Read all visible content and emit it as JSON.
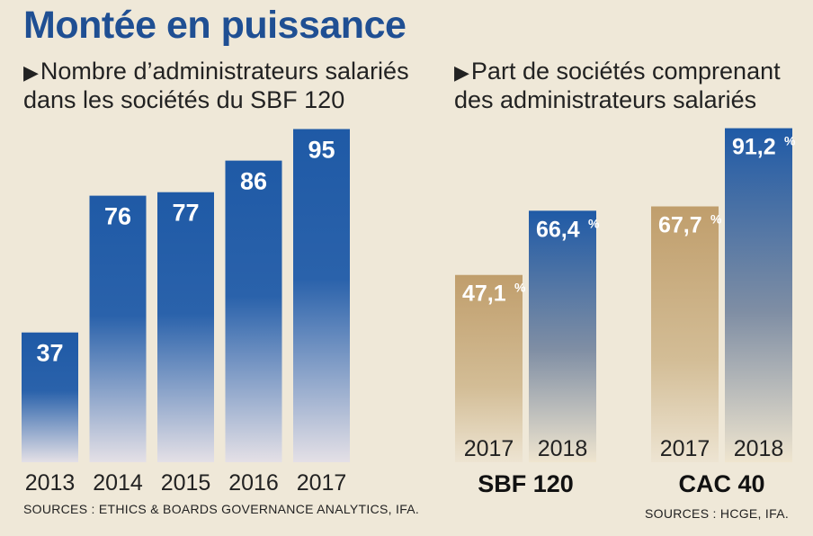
{
  "header": {
    "title": "Montée en puissance",
    "left_subtitle_line1": "Nombre d’administrateurs salariés",
    "left_subtitle_line2": "dans les sociétés du SBF 120",
    "right_subtitle_line1": "Part de sociétés comprenant",
    "right_subtitle_line2": "des administrateurs salariés",
    "arrow_icon": "triangle-right-icon"
  },
  "sources": {
    "left": "SOURCES : ETHICS & BOARDS GOVERNANCE ANALYTICS, IFA.",
    "right": "SOURCES : HCGE, IFA."
  },
  "colors": {
    "background": "#efe8d8",
    "blue": "#1f5aa6",
    "gold": "#c4a574",
    "title": "#1f4f93"
  },
  "chart_data": [
    {
      "type": "bar",
      "categories": [
        "2013",
        "2014",
        "2015",
        "2016",
        "2017"
      ],
      "values": [
        37,
        76,
        77,
        86,
        95
      ],
      "labels": [
        "37",
        "76",
        "77",
        "86",
        "95"
      ],
      "title": "Nombre d’administrateurs salariés dans les sociétés du SBF 120",
      "ylim": [
        0,
        100
      ]
    },
    {
      "type": "bar",
      "groups": [
        {
          "name": "SBF 120",
          "categories": [
            "2017",
            "2018"
          ],
          "values": [
            47.1,
            66.4
          ],
          "labels": [
            "47,1",
            "66,4"
          ],
          "colors": [
            "gold",
            "blue"
          ]
        },
        {
          "name": "CAC 40",
          "categories": [
            "2017",
            "2018"
          ],
          "values": [
            67.7,
            91.2
          ],
          "labels": [
            "67,7",
            "91,2"
          ],
          "colors": [
            "gold",
            "blue"
          ]
        }
      ],
      "unit": "%",
      "title": "Part de sociétés comprenant des administrateurs salariés",
      "ylim": [
        0,
        100
      ]
    }
  ]
}
